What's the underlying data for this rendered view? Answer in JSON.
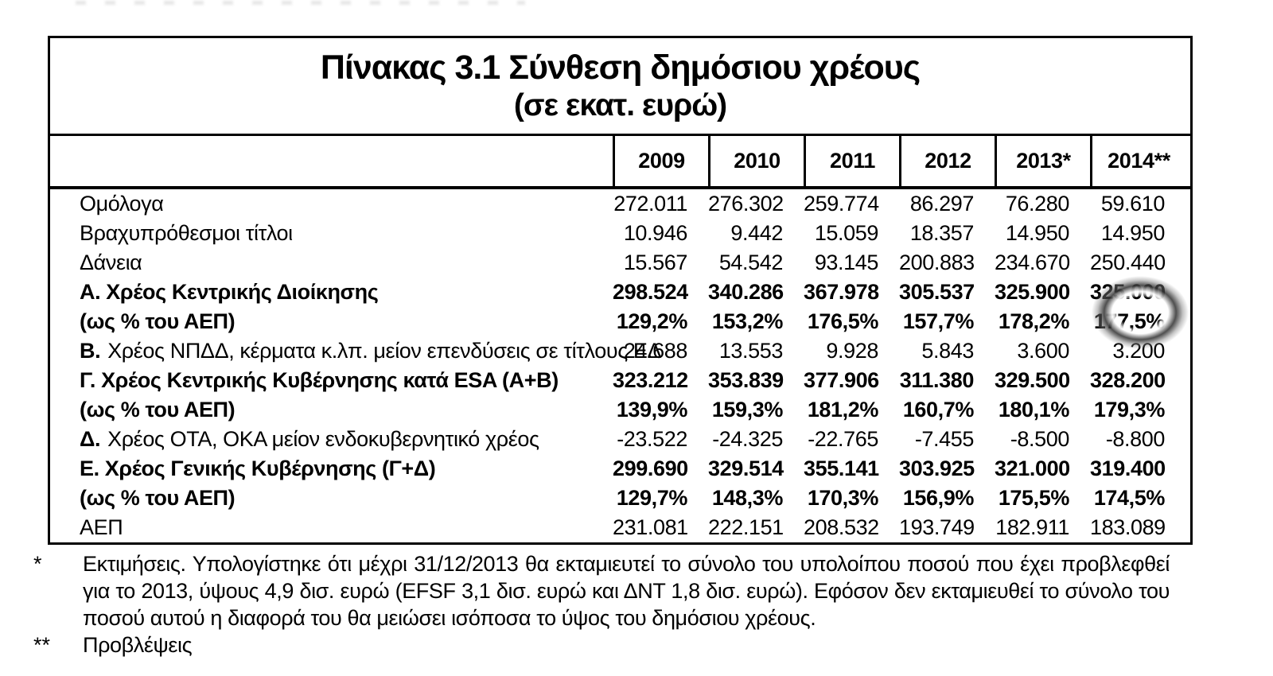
{
  "table": {
    "title_line1": "Πίνακας 3.1 Σύνθεση δημόσιου χρέους",
    "title_line2": "(σε εκατ. ευρώ)",
    "columns": [
      "2009",
      "2010",
      "2011",
      "2012",
      "2013*",
      "2014**"
    ],
    "rows": [
      {
        "label": "Ομόλογα",
        "bold": false,
        "values": [
          "272.011",
          "276.302",
          "259.774",
          "86.297",
          "76.280",
          "59.610"
        ]
      },
      {
        "label": "Βραχυπρόθεσμοι τίτλοι",
        "bold": false,
        "values": [
          "10.946",
          "9.442",
          "15.059",
          "18.357",
          "14.950",
          "14.950"
        ]
      },
      {
        "label": "Δάνεια",
        "bold": false,
        "values": [
          "15.567",
          "54.542",
          "93.145",
          "200.883",
          "234.670",
          "250.440"
        ]
      },
      {
        "label": "Α. Χρέος Κεντρικής Διοίκησης",
        "bold": true,
        "values": [
          "298.524",
          "340.286",
          "367.978",
          "305.537",
          "325.900",
          "325.000"
        ]
      },
      {
        "label": "(ως % του ΑΕΠ)",
        "bold": true,
        "values": [
          "129,2%",
          "153,2%",
          "176,5%",
          "157,7%",
          "178,2%",
          "177,5%"
        ]
      },
      {
        "label_prefix": "Β.",
        "label": "Χρέος ΝΠΔΔ, κέρματα κ.λπ. μείον επενδύσεις σε τίτλους ΕΔ",
        "bold": false,
        "values": [
          "24.688",
          "13.553",
          "9.928",
          "5.843",
          "3.600",
          "3.200"
        ]
      },
      {
        "label": "Γ. Χρέος Κεντρικής Κυβέρνησης κατά ESA (Α+Β)",
        "bold": true,
        "values": [
          "323.212",
          "353.839",
          "377.906",
          "311.380",
          "329.500",
          "328.200"
        ]
      },
      {
        "label": "(ως % του ΑΕΠ)",
        "bold": true,
        "values": [
          "139,9%",
          "159,3%",
          "181,2%",
          "160,7%",
          "180,1%",
          "179,3%"
        ]
      },
      {
        "label_prefix": "Δ.",
        "label": "Χρέος ΟΤΑ, ΟΚΑ μείον ενδοκυβερνητικό χρέος",
        "bold": false,
        "values": [
          "-23.522",
          "-24.325",
          "-22.765",
          "-7.455",
          "-8.500",
          "-8.800"
        ]
      },
      {
        "label": "Ε. Χρέος Γενικής Κυβέρνησης (Γ+Δ)",
        "bold": true,
        "values": [
          "299.690",
          "329.514",
          "355.141",
          "303.925",
          "321.000",
          "319.400"
        ]
      },
      {
        "label": "(ως % του ΑΕΠ)",
        "bold": true,
        "values": [
          "129,7%",
          "148,3%",
          "170,3%",
          "156,9%",
          "175,5%",
          "174,5%"
        ]
      },
      {
        "label": "ΑΕΠ",
        "bold": false,
        "values": [
          "231.081",
          "222.151",
          "208.532",
          "193.749",
          "182.911",
          "183.089"
        ]
      }
    ],
    "annotation": {
      "type": "hand-drawn-ellipse",
      "highlights": [
        "325.000",
        "177,5%"
      ],
      "column": "2014**",
      "color": "#363636"
    }
  },
  "footnotes": [
    {
      "marker": "*",
      "text": "Εκτιμήσεις. Υπολογίστηκε ότι μέχρι 31/12/2013 θα εκταμιευτεί το σύνολο του υπολοίπου ποσού που έχει προβλεφθεί για το 2013, ύψους 4,9 δισ. ευρώ (EFSF 3,1 δισ. ευρώ και ΔΝΤ 1,8 δισ. ευρώ). Εφόσον δεν εκταμιευθεί το σύνολο του ποσού αυτού η διαφορά του θα μειώσει ισόποσα το ύψος του δημόσιου χρέους."
    },
    {
      "marker": "**",
      "text": "Προβλέψεις"
    }
  ]
}
